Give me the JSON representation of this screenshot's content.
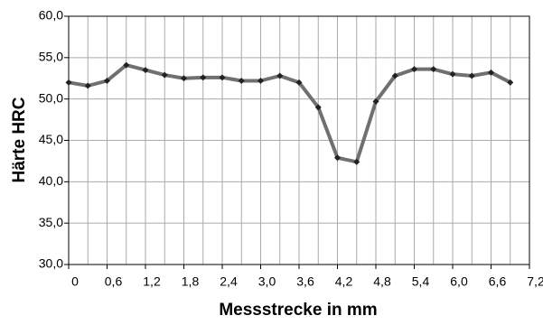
{
  "chart_data": {
    "type": "line",
    "xlabel": "Messstrecke in mm",
    "ylabel": "Härte HRC",
    "x": [
      0,
      0.3,
      0.6,
      0.9,
      1.2,
      1.5,
      1.8,
      2.1,
      2.4,
      2.7,
      3.0,
      3.3,
      3.6,
      3.9,
      4.2,
      4.5,
      4.8,
      5.1,
      5.4,
      5.7,
      6.0,
      6.3,
      6.6,
      6.9
    ],
    "series": [
      {
        "color": "#707070",
        "marker_color": "#222222",
        "values": [
          52.0,
          51.6,
          52.2,
          54.1,
          53.5,
          52.9,
          52.5,
          52.6,
          52.6,
          52.2,
          52.2,
          52.8,
          52.0,
          49.0,
          42.9,
          42.4,
          49.7,
          52.8,
          53.6,
          53.6,
          53.0,
          52.8,
          53.2,
          52.0
        ]
      }
    ],
    "xlim": [
      0,
      7.2
    ],
    "xticks": [
      {
        "value": 0,
        "label": "0"
      },
      {
        "value": 0.6,
        "label": "0,6"
      },
      {
        "value": 1.2,
        "label": "1,2"
      },
      {
        "value": 1.8,
        "label": "1,8"
      },
      {
        "value": 2.4,
        "label": "2,4"
      },
      {
        "value": 3.0,
        "label": "3,0"
      },
      {
        "value": 3.6,
        "label": "3,6"
      },
      {
        "value": 4.2,
        "label": "4,2"
      },
      {
        "value": 4.8,
        "label": "4,8"
      },
      {
        "value": 5.4,
        "label": "5,4"
      },
      {
        "value": 6.0,
        "label": "6,0"
      },
      {
        "value": 6.6,
        "label": "6,6"
      },
      {
        "value": 7.2,
        "label": "7,2"
      }
    ],
    "xgrid_minor": [
      0.3,
      0.9,
      1.5,
      2.1,
      2.7,
      3.3,
      3.9,
      4.5,
      5.1,
      5.7,
      6.3,
      6.9
    ],
    "ylim": [
      30,
      60
    ],
    "yticks": [
      {
        "value": 30,
        "label": "30,0"
      },
      {
        "value": 35,
        "label": "35,0"
      },
      {
        "value": 40,
        "label": "40,0"
      },
      {
        "value": 45,
        "label": "45,0"
      },
      {
        "value": 50,
        "label": "50,0"
      },
      {
        "value": 55,
        "label": "55,0"
      },
      {
        "value": 60,
        "label": "60,0"
      }
    ],
    "grid": true
  }
}
